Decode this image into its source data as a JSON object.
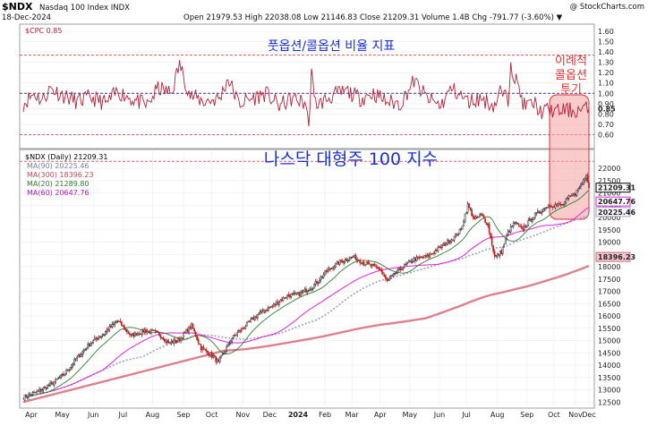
{
  "header": {
    "symbol": "$NDX",
    "name": "Nasdaq 100 Index INDX",
    "date": "18-Dec-2024",
    "ohlc": "Open 21979.53  High 22038.08  Low 21146.83  Close 21209.31  Volume 1.4B  Chg -791.77 (-3.60%) ▼",
    "watermark": "@ StockCharts.com"
  },
  "annotations": {
    "ratio_title": "풋옵션/콜옵션 비율 지표",
    "index_title": "나스닥 대형주 100 지수",
    "callout": [
      "이례적",
      "콜옵션",
      "투기"
    ]
  },
  "colors": {
    "cpc": "#b22238",
    "price_up": "#2a2a2a",
    "price_down": "#c02020",
    "ma90": "#9aa0c8",
    "ma300": "#d86a7a",
    "ma20": "#2e7d2e",
    "ma60": "#e020e0",
    "ref_red": "#e06060",
    "ref_blue": "#3333aa",
    "callout": "#e03030",
    "title_blue": "#1a2fd0"
  },
  "chart_data": [
    {
      "type": "line",
      "panel": "top",
      "legend": "$CPC 0.85",
      "ylim": [
        0.5,
        1.6
      ],
      "yticks": [
        "1.60",
        "1.50",
        "1.40",
        "1.30",
        "1.20",
        "1.10",
        "1.00",
        "0.90",
        "0.85",
        "0.80",
        "0.70",
        "0.60"
      ],
      "reference_lines": [
        1.37,
        1.0,
        0.6
      ],
      "series": [
        {
          "name": "$CPC",
          "anchors": {
            "x": [
              0,
              8,
              14,
              20,
              30,
              40,
              50,
              62,
              70,
              80,
              92,
              100,
              110,
              116,
              124,
              134,
              146,
              152,
              160,
              170,
              180,
              190,
              200,
              210,
              212,
              214,
              216,
              220,
              230,
              240,
              250,
              260,
              270,
              280,
              290,
              300,
              310,
              318,
              330,
              340,
              350,
              354,
              360,
              362,
              372,
              380,
              384,
              392,
              395,
              397,
              400,
              410,
              420
            ],
            "y": [
              0.9,
              1.0,
              0.93,
              1.05,
              0.98,
              0.92,
              0.96,
              0.9,
              1.02,
              0.95,
              0.88,
              1.05,
              1.0,
              1.28,
              0.98,
              0.92,
              0.95,
              1.15,
              0.9,
              0.95,
              1.0,
              0.88,
              0.95,
              0.9,
              0.68,
              1.24,
              0.92,
              0.9,
              0.98,
              1.02,
              0.95,
              1.0,
              0.92,
              0.9,
              1.12,
              0.95,
              0.88,
              1.05,
              0.92,
              0.95,
              0.88,
              1.02,
              0.93,
              1.28,
              0.88,
              0.9,
              0.82,
              0.84,
              0.83,
              0.82,
              0.84,
              0.83,
              0.85
            ]
          }
        }
      ]
    },
    {
      "type": "candlestick",
      "panel": "bottom",
      "legend_title": "$NDX (Daily) 21209.31",
      "x_unit": "trading days from Apr 2023",
      "xlim": [
        0,
        420
      ],
      "ylim": [
        12400,
        22400
      ],
      "yticks": [
        "22000",
        "21500",
        "21000",
        "20500",
        "20000",
        "19500",
        "19000",
        "18500",
        "18000",
        "17500",
        "17000",
        "16500",
        "16000",
        "15500",
        "15000",
        "14500",
        "14000",
        "13500",
        "13000",
        "12500"
      ],
      "xtick_labels": [
        {
          "x": 6,
          "label": "Apr"
        },
        {
          "x": 29,
          "label": "May"
        },
        {
          "x": 52,
          "label": "Jun"
        },
        {
          "x": 74,
          "label": "Jul"
        },
        {
          "x": 96,
          "label": "Aug"
        },
        {
          "x": 119,
          "label": "Sep"
        },
        {
          "x": 140,
          "label": "Oct"
        },
        {
          "x": 163,
          "label": "Nov"
        },
        {
          "x": 183,
          "label": "Dec"
        },
        {
          "x": 204,
          "label": "2024"
        },
        {
          "x": 224,
          "label": "Feb"
        },
        {
          "x": 244,
          "label": "Mar"
        },
        {
          "x": 265,
          "label": "Apr"
        },
        {
          "x": 287,
          "label": "May"
        },
        {
          "x": 309,
          "label": "Jun"
        },
        {
          "x": 329,
          "label": "Jul"
        },
        {
          "x": 352,
          "label": "Aug"
        },
        {
          "x": 374,
          "label": "Sep"
        },
        {
          "x": 394,
          "label": "Oct"
        },
        {
          "x": 410,
          "label": "Nov"
        },
        {
          "x": 420,
          "label": "Dec"
        }
      ],
      "close_anchors": {
        "x": [
          0,
          10,
          20,
          30,
          40,
          50,
          60,
          70,
          80,
          90,
          100,
          108,
          115,
          125,
          132,
          140,
          145,
          150,
          155,
          165,
          175,
          185,
          195,
          205,
          215,
          225,
          235,
          245,
          255,
          265,
          270,
          280,
          290,
          300,
          310,
          320,
          325,
          330,
          335,
          340,
          345,
          350,
          355,
          360,
          365,
          370,
          380,
          390,
          400,
          405,
          410,
          415,
          418,
          420
        ],
        "y": [
          12700,
          12900,
          13200,
          13600,
          14300,
          14900,
          15300,
          15800,
          15200,
          15400,
          15300,
          14900,
          15000,
          15600,
          14700,
          14400,
          14100,
          14600,
          15100,
          15600,
          16100,
          16400,
          16800,
          16900,
          17200,
          17800,
          18200,
          18400,
          18100,
          17900,
          17400,
          17900,
          18300,
          18400,
          18800,
          19200,
          19500,
          20500,
          19900,
          20100,
          19700,
          18400,
          18600,
          19400,
          19800,
          19500,
          20100,
          20500,
          20500,
          20800,
          21000,
          21400,
          21800,
          21209.31
        ]
      },
      "series": [
        {
          "name": "MA(90) 20225.46",
          "kind": "dotted",
          "last": 20225.46
        },
        {
          "name": "MA(300) 18396.23",
          "kind": "thick",
          "last": 18396.23
        },
        {
          "name": "MA(20) 21289.80",
          "kind": "thin",
          "last": 21289.8
        },
        {
          "name": "MA(60) 20647.76",
          "kind": "thin",
          "last": 20647.76
        }
      ],
      "value_tags": [
        {
          "label": "21209.31",
          "value": 21209.31,
          "fill": "#ffffff",
          "stroke": "#000000"
        },
        {
          "label": "20647.76",
          "value": 20647.76,
          "fill": "#ffffff",
          "stroke": "#e020e0"
        },
        {
          "label": "20225.46",
          "value": 20225.46,
          "fill": "#ffffff",
          "stroke": "#9aa0c8"
        },
        {
          "label": "18396.23",
          "value": 18396.23,
          "fill": "#f4c8d0",
          "stroke": "#d86a7a"
        }
      ]
    }
  ]
}
